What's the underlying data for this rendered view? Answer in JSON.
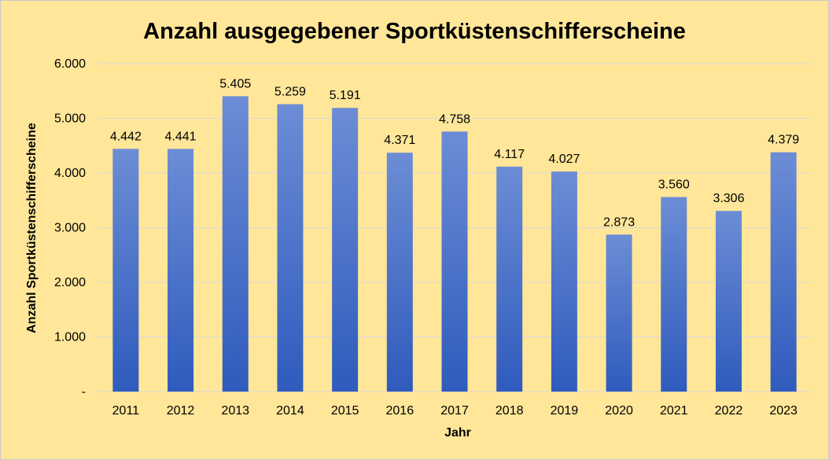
{
  "chart_data": {
    "type": "bar",
    "title": "Anzahl ausgegebener Sportküstenschifferscheine",
    "xlabel": "Jahr",
    "ylabel": "Anzahl Sportküstenschifferscheine",
    "ylim": [
      0,
      6000
    ],
    "yticks": [
      0,
      1000,
      2000,
      3000,
      4000,
      5000,
      6000
    ],
    "ytick_labels": [
      "-",
      "1.000",
      "2.000",
      "3.000",
      "4.000",
      "5.000",
      "6.000"
    ],
    "categories": [
      "2011",
      "2012",
      "2013",
      "2014",
      "2015",
      "2016",
      "2017",
      "2018",
      "2019",
      "2020",
      "2021",
      "2022",
      "2023"
    ],
    "values": [
      4442,
      4441,
      5405,
      5259,
      5191,
      4371,
      4758,
      4117,
      4027,
      2873,
      3560,
      3306,
      4379
    ],
    "value_labels": [
      "4.442",
      "4.441",
      "5.405",
      "5.259",
      "5.191",
      "4.371",
      "4.758",
      "4.117",
      "4.027",
      "2.873",
      "3.560",
      "3.306",
      "4.379"
    ],
    "grid": true,
    "legend": "none",
    "colors": {
      "background": "#ffe699",
      "bar_top": "#6c8dd5",
      "bar_bottom": "#2f5bbd",
      "gridline": "#d9d9d9",
      "text": "#000000"
    }
  }
}
